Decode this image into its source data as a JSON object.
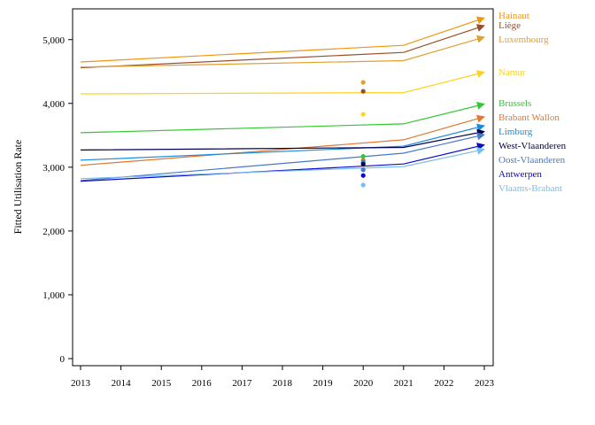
{
  "chart_data": {
    "type": "line",
    "title": "",
    "xlabel": "",
    "ylabel": "Fitted Utilisation Rate",
    "xlim": [
      2013,
      2023
    ],
    "ylim": [
      0,
      5500
    ],
    "x_ticks": [
      "2013",
      "2014",
      "2015",
      "2016",
      "2017",
      "2018",
      "2019",
      "2020",
      "2021",
      "2022",
      "2023"
    ],
    "y_ticks": [
      "0",
      "1,000",
      "2,000",
      "3,000",
      "4,000",
      "5,000"
    ],
    "grid": false,
    "legend": "direct labels at line ends (right)",
    "series": [
      {
        "name": "Hainaut",
        "color": "#f0960f",
        "x": [
          2013,
          2021,
          2023
        ],
        "y": [
          4650,
          4910,
          5340
        ],
        "point": null
      },
      {
        "name": "Liège",
        "color": "#9a4e2a",
        "x": [
          2013,
          2021,
          2023
        ],
        "y": [
          4560,
          4800,
          5220
        ],
        "point": {
          "x": 2020,
          "y": 4190
        }
      },
      {
        "name": "Luxembourg",
        "color": "#e0a030",
        "x": [
          2013,
          2021,
          2023
        ],
        "y": [
          4570,
          4670,
          5040
        ],
        "point": {
          "x": 2020,
          "y": 4330
        }
      },
      {
        "name": "Namur",
        "color": "#ffd21e",
        "x": [
          2013,
          2021,
          2023
        ],
        "y": [
          4150,
          4170,
          4490
        ],
        "point": {
          "x": 2020,
          "y": 3830
        }
      },
      {
        "name": "Brussels",
        "color": "#32c832",
        "x": [
          2013,
          2021,
          2023
        ],
        "y": [
          3540,
          3680,
          3990
        ],
        "point": {
          "x": 2020,
          "y": 3170
        }
      },
      {
        "name": "Brabant Wallon",
        "color": "#e07832",
        "x": [
          2013,
          2021,
          2023
        ],
        "y": [
          3030,
          3430,
          3790
        ],
        "point": {
          "x": 2020,
          "y": 3110
        }
      },
      {
        "name": "Limburg",
        "color": "#1e8cdc",
        "x": [
          2013,
          2021,
          2023
        ],
        "y": [
          3110,
          3330,
          3650
        ],
        "point": {
          "x": 2020,
          "y": 3080
        }
      },
      {
        "name": "West-Vlaanderen",
        "color": "#000050",
        "x": [
          2013,
          2021,
          2023
        ],
        "y": [
          3270,
          3310,
          3560
        ],
        "point": {
          "x": 2020,
          "y": 3050
        }
      },
      {
        "name": "Oost-Vlaanderen",
        "color": "#4678c8",
        "x": [
          2013,
          2021,
          2023
        ],
        "y": [
          2790,
          3220,
          3510
        ],
        "point": {
          "x": 2020,
          "y": 2960
        }
      },
      {
        "name": "Antwerpen",
        "color": "#0a0ad2",
        "x": [
          2013,
          2021,
          2023
        ],
        "y": [
          2780,
          3050,
          3350
        ],
        "point": {
          "x": 2020,
          "y": 2870
        }
      },
      {
        "name": "Vlaams-Brabant",
        "color": "#78bef0",
        "x": [
          2013,
          2021,
          2023
        ],
        "y": [
          2820,
          3010,
          3280
        ],
        "point": {
          "x": 2020,
          "y": 2720
        }
      }
    ]
  }
}
